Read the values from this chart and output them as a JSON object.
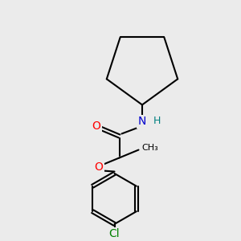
{
  "background_color": "#ebebeb",
  "bond_color": "#000000",
  "bond_width": 1.5,
  "atom_colors": {
    "O": "#ff0000",
    "N": "#0000cd",
    "H": "#008080",
    "Cl": "#008000",
    "C": "#000000"
  },
  "font_size": 10,
  "figsize": [
    3.0,
    3.0
  ],
  "dpi": 100,
  "xlim": [
    0,
    300
  ],
  "ylim": [
    0,
    300
  ]
}
